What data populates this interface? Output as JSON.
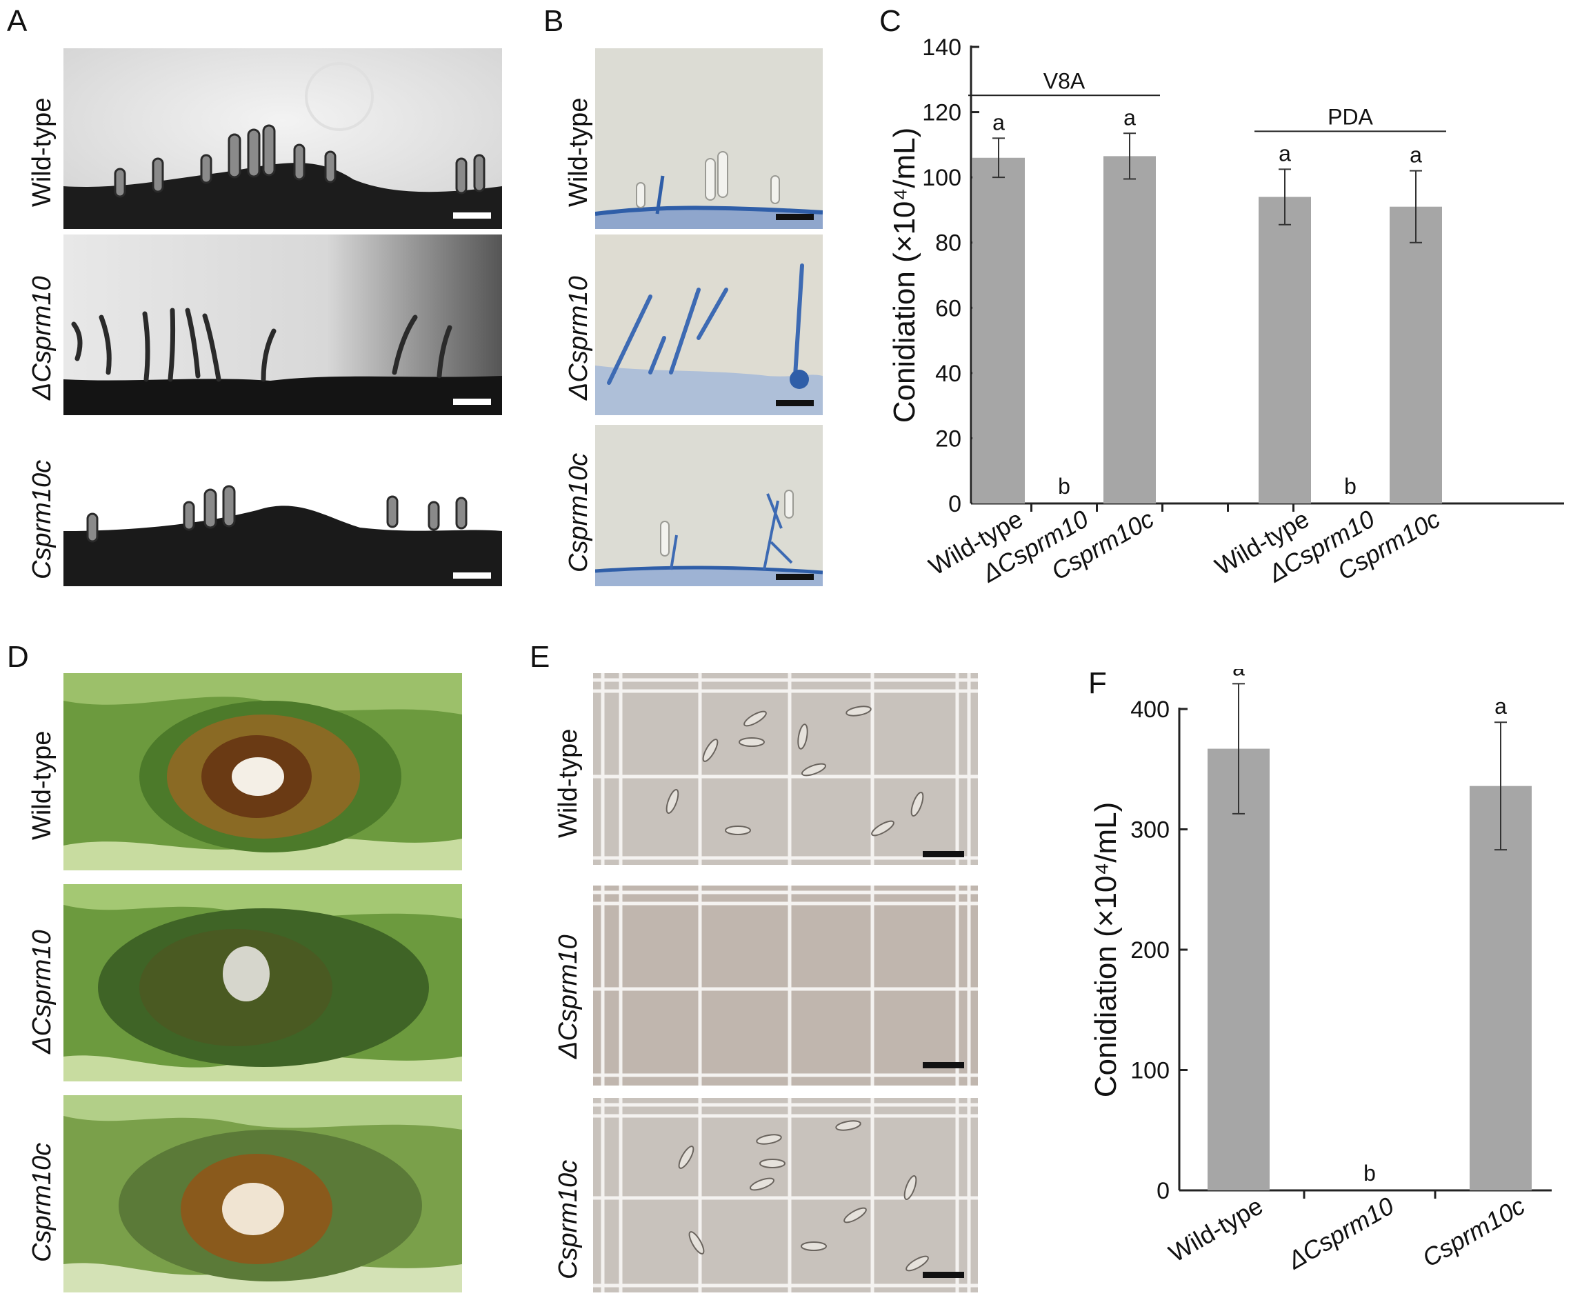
{
  "panels": {
    "A": {
      "letter": "A",
      "rows": [
        {
          "label": "Wild-type",
          "italic": false
        },
        {
          "label": "ΔCsprm10",
          "italic": true
        },
        {
          "label": "Csprm10c",
          "italic": true
        }
      ]
    },
    "B": {
      "letter": "B",
      "rows": [
        {
          "label": "Wild-type",
          "italic": false
        },
        {
          "label": "ΔCsprm10",
          "italic": true
        },
        {
          "label": "Csprm10c",
          "italic": true
        }
      ]
    },
    "D": {
      "letter": "D",
      "rows": [
        {
          "label": "Wild-type",
          "italic": false
        },
        {
          "label": "ΔCsprm10",
          "italic": true
        },
        {
          "label": "Csprm10c",
          "italic": true
        }
      ]
    },
    "E": {
      "letter": "E",
      "rows": [
        {
          "label": "Wild-type",
          "italic": false
        },
        {
          "label": "ΔCsprm10",
          "italic": true
        },
        {
          "label": "Csprm10c",
          "italic": true
        }
      ]
    }
  },
  "colors": {
    "bar": "#a6a6a6",
    "axis": "#222222",
    "stain_blue": "#2f5ea8",
    "leaf_green": "#4c7a2a",
    "lesion_brown": "#8a5a1c"
  },
  "chart_data": [
    {
      "panel": "C",
      "type": "bar",
      "ylabel": "Conidiation (×10⁴/mL)",
      "ylim": [
        0,
        140
      ],
      "yticks": [
        0,
        20,
        40,
        60,
        80,
        100,
        120,
        140
      ],
      "categories": [
        "Wild-type",
        "ΔCsprm10",
        "Csprm10c",
        "Wild-type",
        "ΔCsprm10",
        "Csprm10c"
      ],
      "category_italic": [
        false,
        true,
        true,
        false,
        true,
        true
      ],
      "values": [
        106,
        0,
        106.5,
        94,
        0,
        91
      ],
      "errors": [
        6,
        0,
        7,
        8.5,
        0,
        11
      ],
      "significance": [
        "a",
        "b",
        "a",
        "a",
        "b",
        "a"
      ],
      "groups": [
        {
          "label": "V8A",
          "from": 0,
          "to": 2
        },
        {
          "label": "PDA",
          "from": 3,
          "to": 5
        }
      ]
    },
    {
      "panel": "F",
      "type": "bar",
      "ylabel": "Conidiation (×10⁴/mL)",
      "ylim": [
        0,
        400
      ],
      "yticks": [
        0,
        100,
        200,
        300,
        400
      ],
      "categories": [
        "Wild-type",
        "ΔCsprm10",
        "Csprm10c"
      ],
      "category_italic": [
        false,
        true,
        true
      ],
      "values": [
        367,
        0,
        336
      ],
      "errors": [
        54,
        0,
        53
      ],
      "significance": [
        "a",
        "b",
        "a"
      ]
    }
  ],
  "chart_letters": {
    "C": "C",
    "F": "F"
  }
}
